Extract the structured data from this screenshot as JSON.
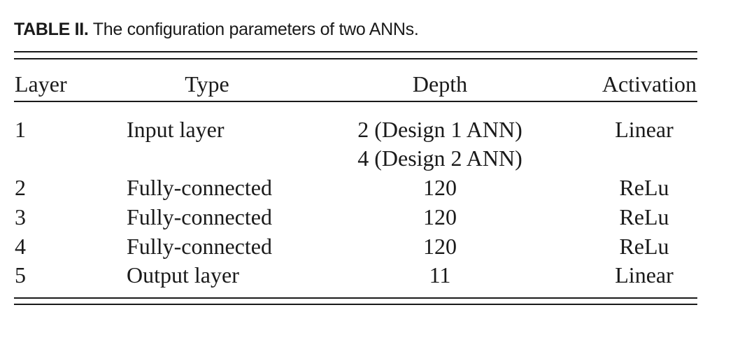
{
  "caption": {
    "label": "TABLE II.",
    "text": "The configuration parameters of two ANNs."
  },
  "table": {
    "headers": {
      "layer": "Layer",
      "type": "Type",
      "depth": "Depth",
      "activation": "Activation"
    },
    "rows": [
      {
        "layer": "1",
        "type": "Input layer",
        "depth": [
          "2 (Design 1 ANN)",
          "4 (Design 2 ANN)"
        ],
        "activation": "Linear"
      },
      {
        "layer": "2",
        "type": "Fully-connected",
        "depth": [
          "120"
        ],
        "activation": "ReLu"
      },
      {
        "layer": "3",
        "type": "Fully-connected",
        "depth": [
          "120"
        ],
        "activation": "ReLu"
      },
      {
        "layer": "4",
        "type": "Fully-connected",
        "depth": [
          "120"
        ],
        "activation": "ReLu"
      },
      {
        "layer": "5",
        "type": "Output layer",
        "depth": [
          "11"
        ],
        "activation": "Linear"
      }
    ]
  }
}
